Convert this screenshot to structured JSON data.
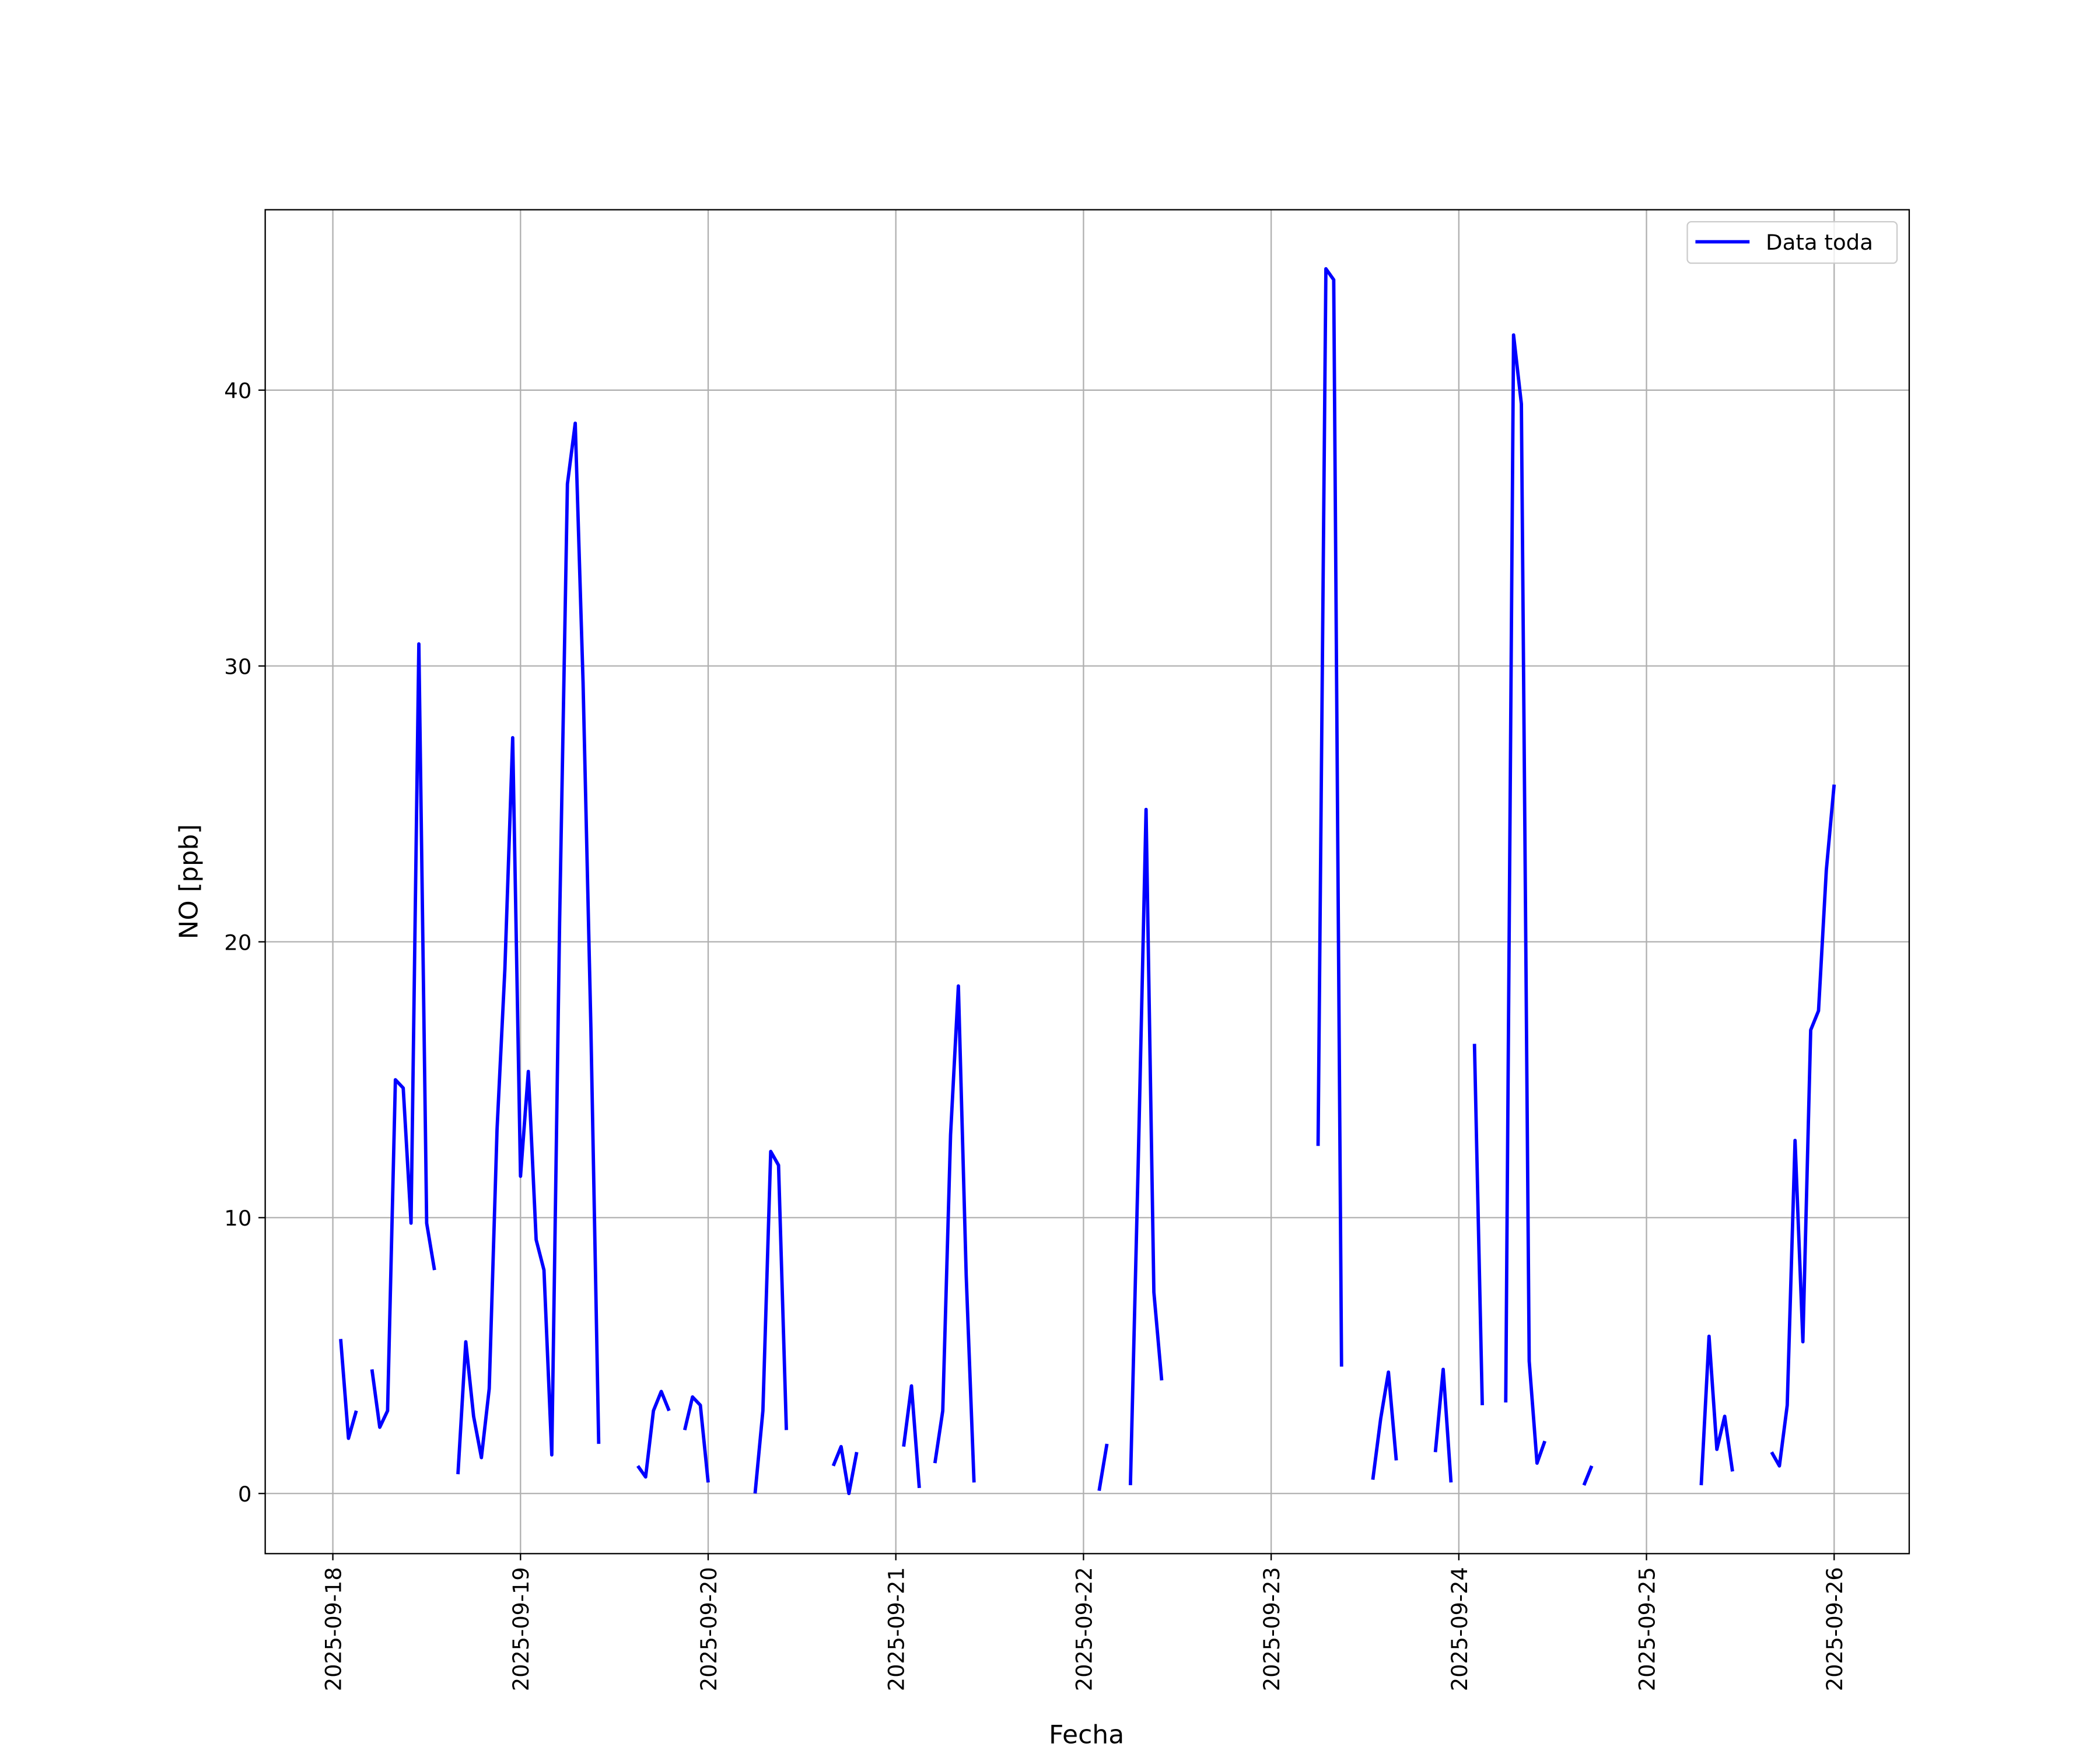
{
  "chart_data": {
    "type": "line",
    "xlabel": "Fecha",
    "ylabel": "NO [ppb]",
    "x": [
      "2025-09-18 01:00",
      "2025-09-18 02:00",
      "2025-09-18 03:00",
      "2025-09-18 04:00",
      "2025-09-18 05:00",
      "2025-09-18 06:00",
      "2025-09-18 07:00",
      "2025-09-18 08:00",
      "2025-09-18 09:00",
      "2025-09-18 10:00",
      "2025-09-18 11:00",
      "2025-09-18 12:00",
      "2025-09-18 13:00",
      "2025-09-18 14:00",
      "2025-09-18 16:00",
      "2025-09-18 17:00",
      "2025-09-18 18:00",
      "2025-09-18 19:00",
      "2025-09-18 20:00",
      "2025-09-18 21:00",
      "2025-09-18 22:00",
      "2025-09-18 23:00",
      "2025-09-19 00:00",
      "2025-09-19 01:00",
      "2025-09-19 02:00",
      "2025-09-19 03:00",
      "2025-09-19 04:00",
      "2025-09-19 05:00",
      "2025-09-19 06:00",
      "2025-09-19 07:00",
      "2025-09-19 08:00",
      "2025-09-19 09:00",
      "2025-09-19 10:00",
      "2025-09-19 11:00",
      "2025-09-19 15:00",
      "2025-09-19 16:00",
      "2025-09-19 17:00",
      "2025-09-19 18:00",
      "2025-09-19 19:00",
      "2025-09-19 20:00",
      "2025-09-19 21:00",
      "2025-09-19 22:00",
      "2025-09-19 23:00",
      "2025-09-20 00:00",
      "2025-09-20 01:00",
      "2025-09-20 06:00",
      "2025-09-20 07:00",
      "2025-09-20 08:00",
      "2025-09-20 09:00",
      "2025-09-20 10:00",
      "2025-09-20 11:00",
      "2025-09-20 16:00",
      "2025-09-20 17:00",
      "2025-09-20 18:00",
      "2025-09-20 19:00",
      "2025-09-20 20:00",
      "2025-09-21 01:00",
      "2025-09-21 02:00",
      "2025-09-21 03:00",
      "2025-09-21 04:00",
      "2025-09-21 05:00",
      "2025-09-21 06:00",
      "2025-09-21 07:00",
      "2025-09-21 08:00",
      "2025-09-21 09:00",
      "2025-09-21 10:00",
      "2025-09-21 11:00",
      "2025-09-22 02:00",
      "2025-09-22 03:00",
      "2025-09-22 04:00",
      "2025-09-22 06:00",
      "2025-09-22 07:00",
      "2025-09-22 08:00",
      "2025-09-22 09:00",
      "2025-09-22 10:00",
      "2025-09-22 11:00",
      "2025-09-23 06:00",
      "2025-09-23 07:00",
      "2025-09-23 08:00",
      "2025-09-23 09:00",
      "2025-09-23 10:00",
      "2025-09-23 13:00",
      "2025-09-23 14:00",
      "2025-09-23 15:00",
      "2025-09-23 16:00",
      "2025-09-23 17:00",
      "2025-09-23 21:00",
      "2025-09-23 22:00",
      "2025-09-23 23:00",
      "2025-09-24 00:00",
      "2025-09-24 02:00",
      "2025-09-24 03:00",
      "2025-09-24 04:00",
      "2025-09-24 06:00",
      "2025-09-24 07:00",
      "2025-09-24 08:00",
      "2025-09-24 09:00",
      "2025-09-24 10:00",
      "2025-09-24 11:00",
      "2025-09-24 12:00",
      "2025-09-24 16:00",
      "2025-09-24 17:00",
      "2025-09-24 18:00",
      "2025-09-25 07:00",
      "2025-09-25 08:00",
      "2025-09-25 09:00",
      "2025-09-25 10:00",
      "2025-09-25 11:00",
      "2025-09-25 12:00",
      "2025-09-25 16:00",
      "2025-09-25 17:00",
      "2025-09-25 18:00",
      "2025-09-25 19:00",
      "2025-09-25 20:00",
      "2025-09-25 21:00",
      "2025-09-25 22:00",
      "2025-09-25 23:00",
      "2025-09-26 00:00"
    ],
    "series": [
      {
        "name": "Data toda",
        "color": "#0000ff",
        "values": [
          5.6,
          2.0,
          3.0,
          null,
          4.5,
          2.4,
          3.0,
          15.0,
          14.7,
          9.8,
          30.8,
          9.8,
          8.1,
          null,
          0.7,
          5.5,
          2.8,
          1.3,
          3.8,
          13.2,
          19.0,
          27.4,
          11.5,
          15.3,
          9.2,
          8.1,
          1.4,
          20.7,
          36.6,
          38.8,
          29.4,
          16.9,
          1.8,
          null,
          1.0,
          0.6,
          3.0,
          3.7,
          3.0,
          null,
          2.3,
          3.5,
          3.2,
          0.4,
          null,
          0,
          3.0,
          12.4,
          11.9,
          2.3,
          null,
          1.0,
          1.7,
          0,
          1.5,
          null,
          1.7,
          3.9,
          0.2,
          null,
          1.1,
          3.0,
          13.0,
          18.4,
          7.9,
          0.4,
          null,
          0.1,
          1.8,
          null,
          0.3,
          12.0,
          24.8,
          7.3,
          4.1,
          null,
          12.6,
          44.4,
          44.0,
          4.6,
          null,
          0.5,
          2.7,
          4.4,
          1.2,
          null,
          1.5,
          4.5,
          0.4,
          null,
          16.3,
          3.2,
          null,
          3.3,
          42.0,
          39.5,
          4.8,
          1.1,
          1.9,
          null,
          0.3,
          1.0,
          null,
          0.3,
          5.7,
          1.6,
          2.8,
          0.8,
          null,
          1.5,
          1.0,
          3.2,
          12.8,
          5.5,
          16.8,
          17.5,
          22.6,
          25.7
        ]
      }
    ],
    "xlim": [
      "2025-09-17 15:21",
      "2025-09-26 09:36"
    ],
    "xticks": [
      "2025-09-18",
      "2025-09-19",
      "2025-09-20",
      "2025-09-21",
      "2025-09-22",
      "2025-09-23",
      "2025-09-24",
      "2025-09-25",
      "2025-09-26"
    ],
    "ylim": [
      -2.18,
      46.54
    ],
    "yticks": [
      0,
      10,
      20,
      30,
      40
    ],
    "grid": true,
    "legend": "upper right"
  }
}
